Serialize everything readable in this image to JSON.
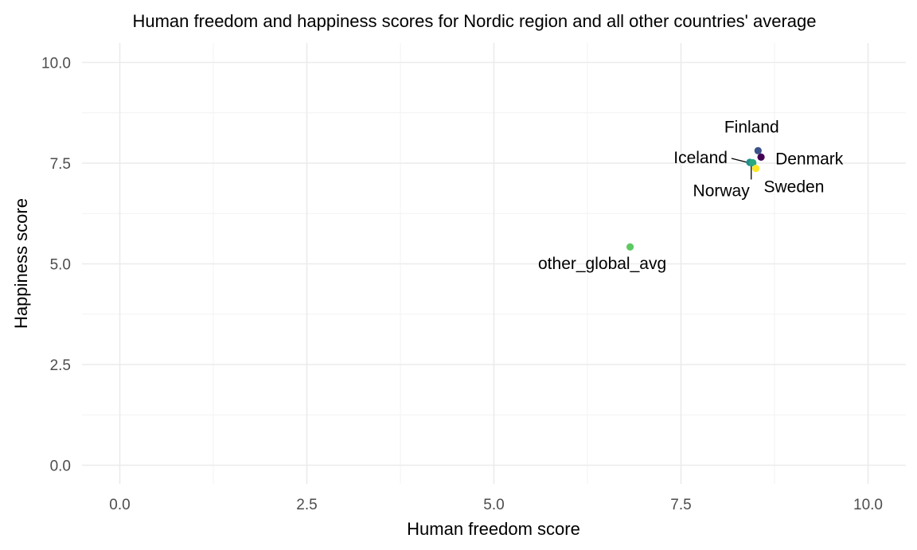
{
  "chart_data": {
    "type": "scatter",
    "title": "Human freedom and happiness scores for Nordic region and all other countries' average",
    "xlabel": "Human freedom score",
    "ylabel": "Happiness score",
    "xlim": [
      0,
      10
    ],
    "ylim": [
      0,
      10
    ],
    "x_ticks": [
      "0.0",
      "2.5",
      "5.0",
      "7.5",
      "10.0"
    ],
    "y_ticks": [
      "0.0",
      "2.5",
      "5.0",
      "7.5",
      "10.0"
    ],
    "grid": true,
    "legend": "none",
    "points": [
      {
        "label": "Denmark",
        "x": 8.57,
        "y": 7.65,
        "color": "#440154"
      },
      {
        "label": "Finland",
        "x": 8.53,
        "y": 7.81,
        "color": "#3b528b"
      },
      {
        "label": "Iceland",
        "x": 8.42,
        "y": 7.52,
        "color": "#21908c"
      },
      {
        "label": "Norway",
        "x": 8.46,
        "y": 7.51,
        "color": "#2aa882"
      },
      {
        "label": "other_global_avg",
        "x": 6.82,
        "y": 5.42,
        "color": "#5ec962"
      },
      {
        "label": "Sweden",
        "x": 8.5,
        "y": 7.37,
        "color": "#fde725"
      }
    ]
  }
}
